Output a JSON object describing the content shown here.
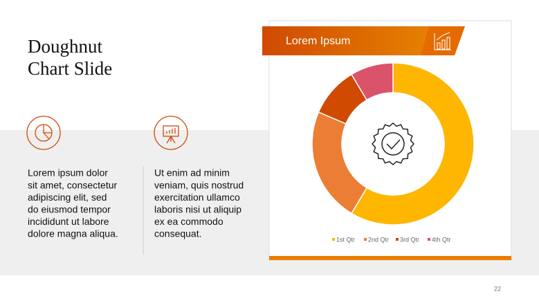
{
  "slide": {
    "title_lines": [
      "Doughnut",
      "Chart Slide"
    ],
    "columns": [
      {
        "lines": [
          "Lorem ipsum dolor",
          "sit amet, consectetur",
          "adipiscing elit, sed",
          "do eiusmod tempor",
          "incididunt ut labore",
          "dolore magna aliqua."
        ]
      },
      {
        "lines": [
          "Ut enim ad minim",
          "veniam, quis nostrud",
          "exercitation ullamco",
          "laboris nisi ut aliquip",
          "ex ea commodo",
          "consequat."
        ]
      }
    ],
    "page_number": "22"
  },
  "chart_data": {
    "type": "doughnut",
    "title": "Lorem Ipsum",
    "categories": [
      "1st Qtr",
      "2nd Qtr",
      "3rd Qtr",
      "4th Qtr"
    ],
    "values": [
      8.2,
      3.2,
      1.4,
      1.2
    ],
    "colors": [
      "#FFB600",
      "#EB7D35",
      "#D04A02",
      "#DB536A"
    ],
    "legend": "bottom"
  }
}
